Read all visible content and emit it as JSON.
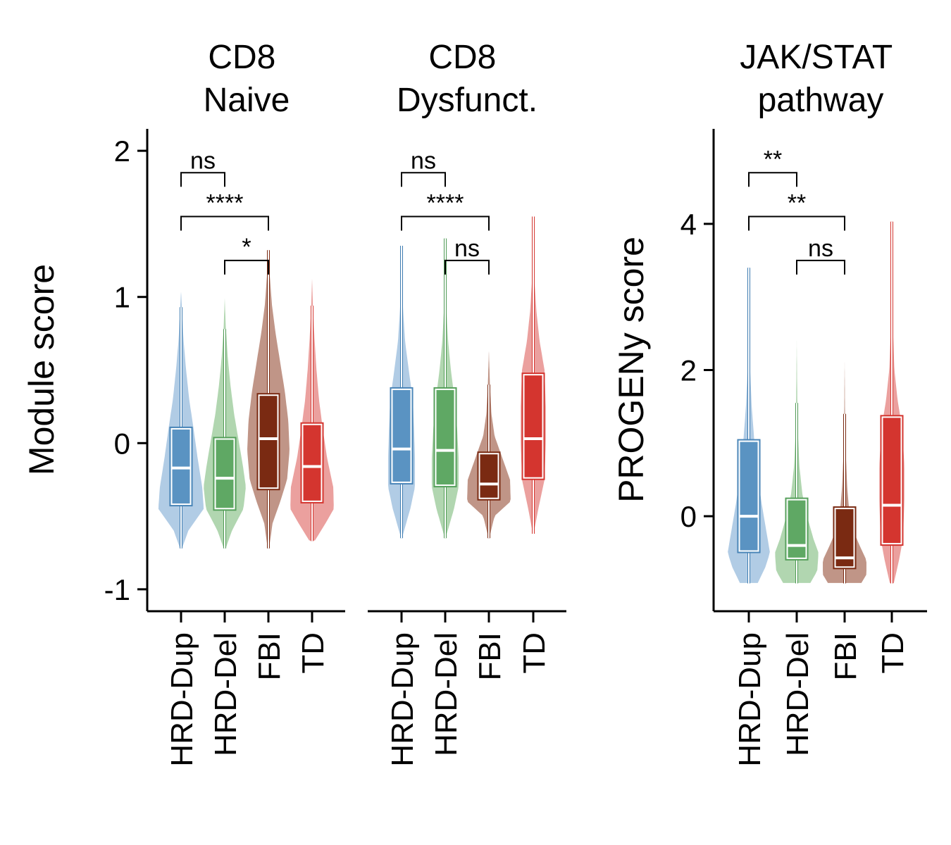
{
  "chart_data": [
    {
      "type": "violin",
      "title": "CD8\nNaive",
      "ylabel": "Module score",
      "ylim": [
        -1.15,
        2.15
      ],
      "yticks": [
        2,
        1,
        0,
        -1
      ],
      "ytick_labels": [
        "2",
        "1",
        "0",
        "-1"
      ],
      "categories": [
        "HRD-Dup",
        "HRD-Del",
        "FBI",
        "TD"
      ],
      "groups": [
        {
          "name": "HRD-Dup",
          "min": -0.72,
          "max": 1.07,
          "whisker_low": -0.72,
          "whisker_high": 0.93,
          "q1": -0.43,
          "median": -0.17,
          "q3": 0.11,
          "mean": -0.22,
          "max_width": 0.75,
          "width_profile": [
            [
              -0.72,
              0.05
            ],
            [
              -0.6,
              0.25
            ],
            [
              -0.45,
              0.75
            ],
            [
              -0.3,
              0.7
            ],
            [
              -0.1,
              0.55
            ],
            [
              0.1,
              0.42
            ],
            [
              0.3,
              0.28
            ],
            [
              0.5,
              0.18
            ],
            [
              0.7,
              0.1
            ],
            [
              0.9,
              0.05
            ],
            [
              1.07,
              0.01
            ]
          ]
        },
        {
          "name": "HRD-Del",
          "min": -0.72,
          "max": 1.03,
          "whisker_low": -0.72,
          "whisker_high": 0.78,
          "q1": -0.46,
          "median": -0.24,
          "q3": 0.04,
          "mean": -0.24,
          "max_width": 0.72,
          "width_profile": [
            [
              -0.72,
              0.05
            ],
            [
              -0.6,
              0.25
            ],
            [
              -0.45,
              0.62
            ],
            [
              -0.3,
              0.7
            ],
            [
              -0.15,
              0.6
            ],
            [
              0.0,
              0.48
            ],
            [
              0.2,
              0.32
            ],
            [
              0.4,
              0.2
            ],
            [
              0.6,
              0.11
            ],
            [
              0.8,
              0.05
            ],
            [
              1.03,
              0.01
            ]
          ]
        },
        {
          "name": "FBI",
          "min": -0.72,
          "max": 1.32,
          "whisker_low": -0.72,
          "whisker_high": 1.32,
          "q1": -0.32,
          "median": 0.03,
          "q3": 0.34,
          "mean": 0.0,
          "max_width": 0.72,
          "width_profile": [
            [
              -0.72,
              0.04
            ],
            [
              -0.55,
              0.15
            ],
            [
              -0.4,
              0.4
            ],
            [
              -0.25,
              0.62
            ],
            [
              -0.05,
              0.7
            ],
            [
              0.15,
              0.66
            ],
            [
              0.35,
              0.55
            ],
            [
              0.55,
              0.4
            ],
            [
              0.75,
              0.25
            ],
            [
              0.95,
              0.13
            ],
            [
              1.15,
              0.06
            ],
            [
              1.32,
              0.01
            ]
          ]
        },
        {
          "name": "TD",
          "min": -0.67,
          "max": 1.18,
          "whisker_low": -0.67,
          "whisker_high": 0.94,
          "q1": -0.41,
          "median": -0.16,
          "q3": 0.14,
          "mean": -0.16,
          "max_width": 0.75,
          "width_profile": [
            [
              -0.67,
              0.1
            ],
            [
              -0.55,
              0.45
            ],
            [
              -0.45,
              0.72
            ],
            [
              -0.3,
              0.7
            ],
            [
              -0.1,
              0.5
            ],
            [
              0.1,
              0.36
            ],
            [
              0.3,
              0.24
            ],
            [
              0.5,
              0.16
            ],
            [
              0.7,
              0.1
            ],
            [
              0.9,
              0.05
            ],
            [
              1.18,
              0.01
            ]
          ]
        }
      ],
      "comparisons": [
        {
          "group1": "HRD-Dup",
          "group2": "HRD-Del",
          "y": 1.85,
          "label": "ns"
        },
        {
          "group1": "HRD-Dup",
          "group2": "FBI",
          "y": 1.55,
          "label": "****"
        },
        {
          "group1": "HRD-Del",
          "group2": "FBI",
          "y": 1.25,
          "label": "*"
        }
      ]
    },
    {
      "type": "violin",
      "title": "CD8\nDysfunct.",
      "ylabel": "",
      "ylim": [
        -1.15,
        2.15
      ],
      "yticks": [],
      "ytick_labels": [],
      "categories": [
        "HRD-Dup",
        "HRD-Del",
        "FBI",
        "TD"
      ],
      "groups": [
        {
          "name": "HRD-Dup",
          "min": -0.65,
          "max": 1.35,
          "whisker_low": -0.65,
          "whisker_high": 1.35,
          "q1": -0.28,
          "median": -0.04,
          "q3": 0.38,
          "mean": -0.09,
          "max_width": 0.45,
          "width_profile": [
            [
              -0.65,
              0.03
            ],
            [
              -0.45,
              0.3
            ],
            [
              -0.3,
              0.45
            ],
            [
              -0.1,
              0.45
            ],
            [
              0.1,
              0.42
            ],
            [
              0.3,
              0.38
            ],
            [
              0.5,
              0.25
            ],
            [
              0.7,
              0.13
            ],
            [
              0.9,
              0.07
            ],
            [
              1.1,
              0.03
            ],
            [
              1.35,
              0.01
            ]
          ]
        },
        {
          "name": "HRD-Del",
          "min": -0.65,
          "max": 1.4,
          "whisker_low": -0.65,
          "whisker_high": 1.4,
          "q1": -0.3,
          "median": -0.05,
          "q3": 0.38,
          "mean": -0.09,
          "max_width": 0.45,
          "width_profile": [
            [
              -0.65,
              0.03
            ],
            [
              -0.45,
              0.3
            ],
            [
              -0.3,
              0.45
            ],
            [
              -0.1,
              0.45
            ],
            [
              0.1,
              0.4
            ],
            [
              0.3,
              0.32
            ],
            [
              0.5,
              0.2
            ],
            [
              0.7,
              0.11
            ],
            [
              0.9,
              0.06
            ],
            [
              1.1,
              0.03
            ],
            [
              1.4,
              0.01
            ]
          ]
        },
        {
          "name": "FBI",
          "min": -0.65,
          "max": 0.68,
          "whisker_low": -0.65,
          "whisker_high": 0.4,
          "q1": -0.39,
          "median": -0.28,
          "q3": -0.06,
          "mean": -0.21,
          "max_width": 0.72,
          "width_profile": [
            [
              -0.65,
              0.03
            ],
            [
              -0.5,
              0.2
            ],
            [
              -0.4,
              0.72
            ],
            [
              -0.25,
              0.7
            ],
            [
              -0.1,
              0.45
            ],
            [
              0.05,
              0.2
            ],
            [
              0.2,
              0.1
            ],
            [
              0.4,
              0.05
            ],
            [
              0.68,
              0.01
            ]
          ]
        },
        {
          "name": "TD",
          "min": -0.62,
          "max": 1.55,
          "whisker_low": -0.62,
          "whisker_high": 1.55,
          "q1": -0.25,
          "median": 0.03,
          "q3": 0.48,
          "mean": 0.03,
          "max_width": 0.42,
          "width_profile": [
            [
              -0.62,
              0.03
            ],
            [
              -0.45,
              0.18
            ],
            [
              -0.25,
              0.38
            ],
            [
              0.0,
              0.42
            ],
            [
              0.25,
              0.42
            ],
            [
              0.5,
              0.38
            ],
            [
              0.7,
              0.22
            ],
            [
              0.9,
              0.12
            ],
            [
              1.1,
              0.06
            ],
            [
              1.3,
              0.03
            ],
            [
              1.55,
              0.01
            ]
          ]
        }
      ],
      "comparisons": [
        {
          "group1": "HRD-Dup",
          "group2": "HRD-Del",
          "y": 1.85,
          "label": "ns"
        },
        {
          "group1": "HRD-Dup",
          "group2": "FBI",
          "y": 1.55,
          "label": "****"
        },
        {
          "group1": "HRD-Del",
          "group2": "FBI",
          "y": 1.25,
          "label": "ns"
        }
      ]
    },
    {
      "type": "violin",
      "title": "JAK/STAT\npathway",
      "ylabel": "PROGENy score",
      "ylim": [
        -1.3,
        5.3
      ],
      "yticks": [
        4,
        2,
        0
      ],
      "ytick_labels": [
        "4",
        "2",
        "0"
      ],
      "categories": [
        "HRD-Dup",
        "HRD-Del",
        "FBI",
        "TD"
      ],
      "groups": [
        {
          "name": "HRD-Dup",
          "min": -0.92,
          "max": 3.4,
          "whisker_low": -0.92,
          "whisker_high": 3.4,
          "q1": -0.5,
          "median": 0.0,
          "q3": 1.05,
          "mean": 0.0,
          "max_width": 0.7,
          "width_profile": [
            [
              -0.92,
              0.3
            ],
            [
              -0.7,
              0.55
            ],
            [
              -0.5,
              0.7
            ],
            [
              -0.2,
              0.58
            ],
            [
              0.2,
              0.42
            ],
            [
              0.6,
              0.3
            ],
            [
              1.0,
              0.2
            ],
            [
              1.5,
              0.11
            ],
            [
              2.0,
              0.06
            ],
            [
              2.6,
              0.03
            ],
            [
              3.4,
              0.01
            ]
          ]
        },
        {
          "name": "HRD-Del",
          "min": -0.92,
          "max": 2.75,
          "whisker_low": -0.92,
          "whisker_high": 1.55,
          "q1": -0.6,
          "median": -0.4,
          "q3": 0.25,
          "mean": -0.4,
          "max_width": 0.72,
          "width_profile": [
            [
              -0.92,
              0.45
            ],
            [
              -0.75,
              0.68
            ],
            [
              -0.5,
              0.72
            ],
            [
              -0.3,
              0.55
            ],
            [
              0.0,
              0.35
            ],
            [
              0.3,
              0.2
            ],
            [
              0.7,
              0.1
            ],
            [
              1.2,
              0.05
            ],
            [
              1.8,
              0.03
            ],
            [
              2.75,
              0.01
            ]
          ]
        },
        {
          "name": "FBI",
          "min": -0.92,
          "max": 2.55,
          "whisker_low": -0.92,
          "whisker_high": 1.4,
          "q1": -0.72,
          "median": -0.57,
          "q3": 0.13,
          "mean": -0.57,
          "max_width": 0.75,
          "width_profile": [
            [
              -0.92,
              0.55
            ],
            [
              -0.8,
              0.72
            ],
            [
              -0.6,
              0.72
            ],
            [
              -0.4,
              0.5
            ],
            [
              -0.2,
              0.3
            ],
            [
              0.0,
              0.18
            ],
            [
              0.4,
              0.1
            ],
            [
              0.8,
              0.06
            ],
            [
              1.4,
              0.03
            ],
            [
              2.55,
              0.01
            ]
          ]
        },
        {
          "name": "TD",
          "min": -0.92,
          "max": 4.03,
          "whisker_low": -0.92,
          "whisker_high": 4.03,
          "q1": -0.4,
          "median": 0.15,
          "q3": 1.38,
          "mean": 0.15,
          "max_width": 0.42,
          "width_profile": [
            [
              -0.92,
              0.08
            ],
            [
              -0.6,
              0.25
            ],
            [
              -0.3,
              0.38
            ],
            [
              0.2,
              0.42
            ],
            [
              0.7,
              0.42
            ],
            [
              1.2,
              0.35
            ],
            [
              1.6,
              0.2
            ],
            [
              2.0,
              0.1
            ],
            [
              2.6,
              0.05
            ],
            [
              3.3,
              0.02
            ],
            [
              4.03,
              0.01
            ]
          ]
        }
      ],
      "comparisons": [
        {
          "group1": "HRD-Dup",
          "group2": "HRD-Del",
          "y": 4.7,
          "label": "**"
        },
        {
          "group1": "HRD-Dup",
          "group2": "FBI",
          "y": 4.1,
          "label": "**"
        },
        {
          "group1": "HRD-Del",
          "group2": "FBI",
          "y": 3.5,
          "label": "ns"
        }
      ]
    }
  ],
  "colors": {
    "HRD-Dup": {
      "fill": "#5a93c2",
      "violin": "#a9c6e2",
      "stroke": "#3d7bb0"
    },
    "HRD-Del": {
      "fill": "#5fa864",
      "violin": "#a9d1a7",
      "stroke": "#4f9a55"
    },
    "FBI": {
      "fill": "#7a2a12",
      "violin": "#b98a7a",
      "stroke": "#7a2a12"
    },
    "TD": {
      "fill": "#d4352f",
      "violin": "#e99693",
      "stroke": "#d4352f"
    }
  }
}
